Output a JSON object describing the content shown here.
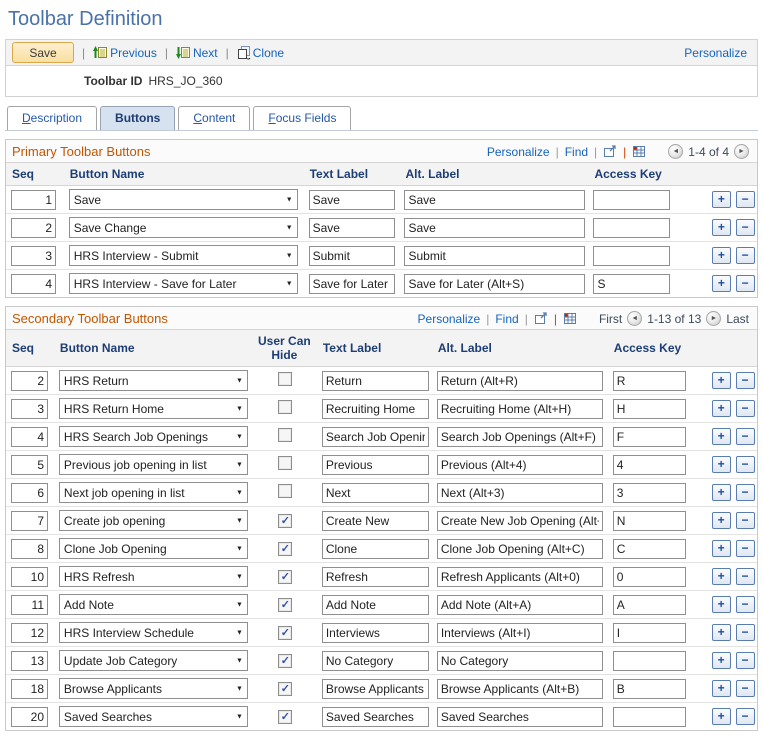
{
  "page_title": "Toolbar Definition",
  "toolbar": {
    "save": "Save",
    "previous": "Previous",
    "next": "Next",
    "clone": "Clone",
    "personalize": "Personalize"
  },
  "record": {
    "label": "Toolbar ID",
    "value": "HRS_JO_360"
  },
  "tabs": [
    {
      "label": "Description",
      "active": false
    },
    {
      "label": "Buttons",
      "active": true
    },
    {
      "label": "Content",
      "active": false
    },
    {
      "label": "Focus Fields",
      "active": false
    }
  ],
  "primary": {
    "title": "Primary Toolbar Buttons",
    "links": {
      "personalize": "Personalize",
      "find": "Find"
    },
    "pagination": {
      "range": "1-4 of 4"
    },
    "columns": {
      "seq": "Seq",
      "button_name": "Button Name",
      "text_label": "Text Label",
      "alt_label": "Alt. Label",
      "access_key": "Access Key"
    },
    "rows": [
      {
        "seq": "1",
        "button_name": "Save",
        "text_label": "Save",
        "alt_label": "Save",
        "access_key": ""
      },
      {
        "seq": "2",
        "button_name": "Save Change",
        "text_label": "Save",
        "alt_label": "Save",
        "access_key": ""
      },
      {
        "seq": "3",
        "button_name": "HRS Interview - Submit",
        "text_label": "Submit",
        "alt_label": "Submit",
        "access_key": ""
      },
      {
        "seq": "4",
        "button_name": "HRS Interview - Save for Later",
        "text_label": "Save for Later",
        "alt_label": "Save for Later (Alt+S)",
        "access_key": "S"
      }
    ]
  },
  "secondary": {
    "title": "Secondary Toolbar Buttons",
    "links": {
      "personalize": "Personalize",
      "find": "Find"
    },
    "pagination": {
      "first": "First",
      "range": "1-13 of 13",
      "last": "Last"
    },
    "columns": {
      "seq": "Seq",
      "button_name": "Button Name",
      "user_can_hide": "User Can Hide",
      "text_label": "Text Label",
      "alt_label": "Alt. Label",
      "access_key": "Access Key"
    },
    "rows": [
      {
        "seq": "2",
        "button_name": "HRS Return",
        "user_can_hide": false,
        "text_label": "Return",
        "alt_label": "Return (Alt+R)",
        "access_key": "R"
      },
      {
        "seq": "3",
        "button_name": "HRS Return Home",
        "user_can_hide": false,
        "text_label": "Recruiting Home",
        "alt_label": "Recruiting Home (Alt+H)",
        "access_key": "H"
      },
      {
        "seq": "4",
        "button_name": "HRS Search Job Openings",
        "user_can_hide": false,
        "text_label": "Search Job Openings",
        "alt_label": "Search Job Openings (Alt+F)",
        "access_key": "F"
      },
      {
        "seq": "5",
        "button_name": "Previous job opening in list",
        "user_can_hide": false,
        "text_label": "Previous",
        "alt_label": "Previous (Alt+4)",
        "access_key": "4"
      },
      {
        "seq": "6",
        "button_name": "Next job opening in list",
        "user_can_hide": false,
        "text_label": "Next",
        "alt_label": "Next (Alt+3)",
        "access_key": "3"
      },
      {
        "seq": "7",
        "button_name": "Create job opening",
        "user_can_hide": true,
        "text_label": "Create New",
        "alt_label": "Create New Job Opening (Alt+N)",
        "access_key": "N"
      },
      {
        "seq": "8",
        "button_name": "Clone Job Opening",
        "user_can_hide": true,
        "text_label": "Clone",
        "alt_label": "Clone Job Opening (Alt+C)",
        "access_key": "C"
      },
      {
        "seq": "10",
        "button_name": "HRS Refresh",
        "user_can_hide": true,
        "text_label": "Refresh",
        "alt_label": "Refresh Applicants (Alt+0)",
        "access_key": "0"
      },
      {
        "seq": "11",
        "button_name": "Add Note",
        "user_can_hide": true,
        "text_label": "Add Note",
        "alt_label": "Add Note (Alt+A)",
        "access_key": "A"
      },
      {
        "seq": "12",
        "button_name": "HRS Interview Schedule",
        "user_can_hide": true,
        "text_label": "Interviews",
        "alt_label": "Interviews (Alt+I)",
        "access_key": "I"
      },
      {
        "seq": "13",
        "button_name": "Update Job Category",
        "user_can_hide": true,
        "text_label": "No Category",
        "alt_label": "No Category",
        "access_key": ""
      },
      {
        "seq": "18",
        "button_name": "Browse Applicants",
        "user_can_hide": true,
        "text_label": "Browse Applicants",
        "alt_label": "Browse Applicants (Alt+B)",
        "access_key": "B"
      },
      {
        "seq": "20",
        "button_name": "Saved Searches",
        "user_can_hide": true,
        "text_label": "Saved Searches",
        "alt_label": "Saved Searches",
        "access_key": ""
      }
    ]
  },
  "icons": {
    "add": "+",
    "remove": "−",
    "prev_arrow": "◄",
    "next_arrow": "►",
    "dropdown": "▼",
    "check": "✓",
    "pipe": "|"
  }
}
